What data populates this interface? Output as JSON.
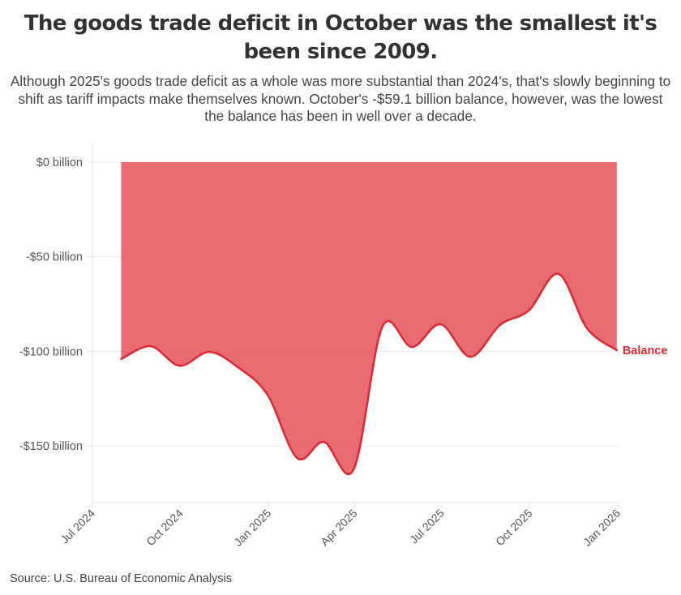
{
  "title": "The goods trade deficit in October was the smallest it's been since 2009.",
  "subtitle": "Although 2025's goods trade deficit as a whole was more substantial than 2024's, that's slowly beginning to shift as tariff impacts make themselves known. October's -$59.1 billion balance, however, was the lowest the balance has been in well over a decade.",
  "source": "Source: U.S. Bureau of Economic Analysis",
  "colors": {
    "fill": "#e5565f",
    "line": "#db2b35",
    "label": "#d72c36",
    "grid": "#ececec"
  },
  "chart_data": {
    "type": "area",
    "title": "The goods trade deficit in October was the smallest it's been since 2009.",
    "xlabel": "",
    "ylabel": "",
    "ylim": [
      -180,
      10
    ],
    "y_ticks": [
      0,
      -50,
      -100,
      -150
    ],
    "y_tick_labels": [
      "$0 billion",
      "-$50 billion",
      "-$100 billion",
      "-$150 billion"
    ],
    "x_range": [
      "2024-07-01",
      "2026-01-01"
    ],
    "x_ticks": [
      "2024-07-01",
      "2024-10-01",
      "2025-01-01",
      "2025-04-01",
      "2025-07-01",
      "2025-10-01",
      "2026-01-01"
    ],
    "x_tick_labels": [
      "Jul 2024",
      "Oct 2024",
      "Jan 2025",
      "Apr 2025",
      "Jul 2025",
      "Oct 2025",
      "Jan 2026"
    ],
    "grid": true,
    "series": [
      {
        "name": "Balance",
        "x": [
          "2024-07-31",
          "2024-08-31",
          "2024-09-30",
          "2024-10-31",
          "2024-11-30",
          "2024-12-31",
          "2025-01-31",
          "2025-02-28",
          "2025-03-31",
          "2025-04-30",
          "2025-05-31",
          "2025-06-30",
          "2025-07-31",
          "2025-08-31",
          "2025-09-30",
          "2025-10-31",
          "2025-11-30",
          "2025-12-31"
        ],
        "values": [
          -104.1,
          -97.3,
          -107.6,
          -100.3,
          -108.4,
          -123.0,
          -156.4,
          -147.9,
          -162.4,
          -87.0,
          -97.7,
          -85.7,
          -102.9,
          -86.0,
          -78.4,
          -59.1,
          -87.9,
          -99.4
        ]
      }
    ]
  }
}
